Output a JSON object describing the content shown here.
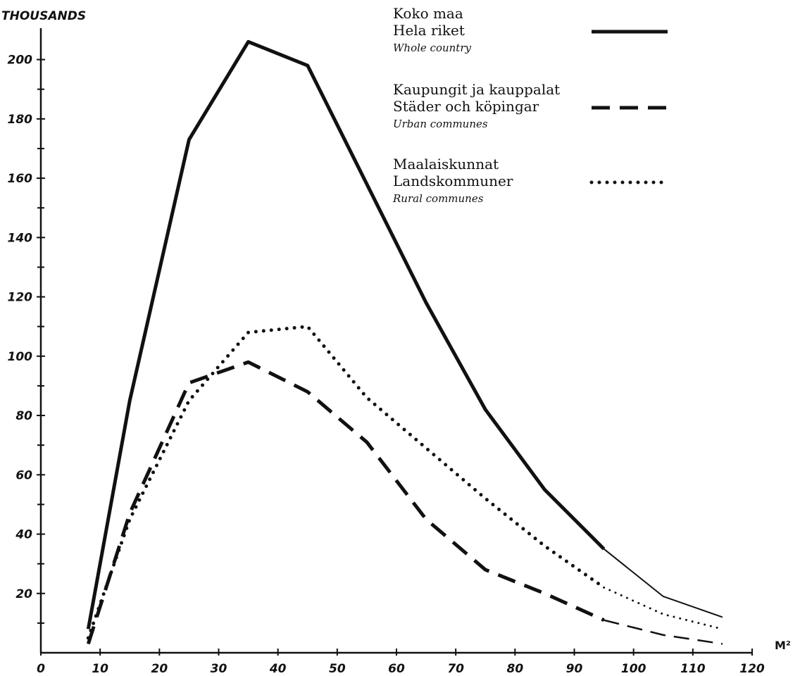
{
  "chart_data": {
    "type": "line",
    "ylabel": "THOUSANDS",
    "xlabel": "M²",
    "xlim": [
      0,
      120
    ],
    "ylim": [
      0,
      210
    ],
    "x_ticks": [
      "0",
      "10",
      "20",
      "30",
      "40",
      "50",
      "60",
      "70",
      "80",
      "90",
      "100",
      "110",
      "120"
    ],
    "y_ticks": [
      "20",
      "40",
      "60",
      "80",
      "100",
      "120",
      "140",
      "160",
      "180",
      "200"
    ],
    "grid": false,
    "legend_placement": "top-right",
    "x": [
      8,
      15,
      25,
      35,
      45,
      55,
      65,
      75,
      85,
      95,
      105,
      115
    ],
    "series": [
      {
        "name": "Koko maa",
        "name_sv": "Hela riket",
        "name_en": "Whole country",
        "style": "solid",
        "values": [
          8,
          85,
          173,
          206,
          198,
          158,
          118,
          82,
          55,
          35,
          19,
          12
        ]
      },
      {
        "name": "Kaupungit ja kauppalat",
        "name_sv": "Städer och köpingar",
        "name_en": "Urban communes",
        "style": "dashed",
        "values": [
          3,
          47,
          91,
          98,
          88,
          71,
          45,
          28,
          20,
          11,
          6,
          3
        ]
      },
      {
        "name": "Maalaiskunnat",
        "name_sv": "Landskommuner",
        "name_en": "Rural communes",
        "style": "dotted",
        "values": [
          5,
          45,
          85,
          108,
          110,
          86,
          69,
          52,
          36,
          22,
          13,
          8
        ]
      }
    ]
  }
}
